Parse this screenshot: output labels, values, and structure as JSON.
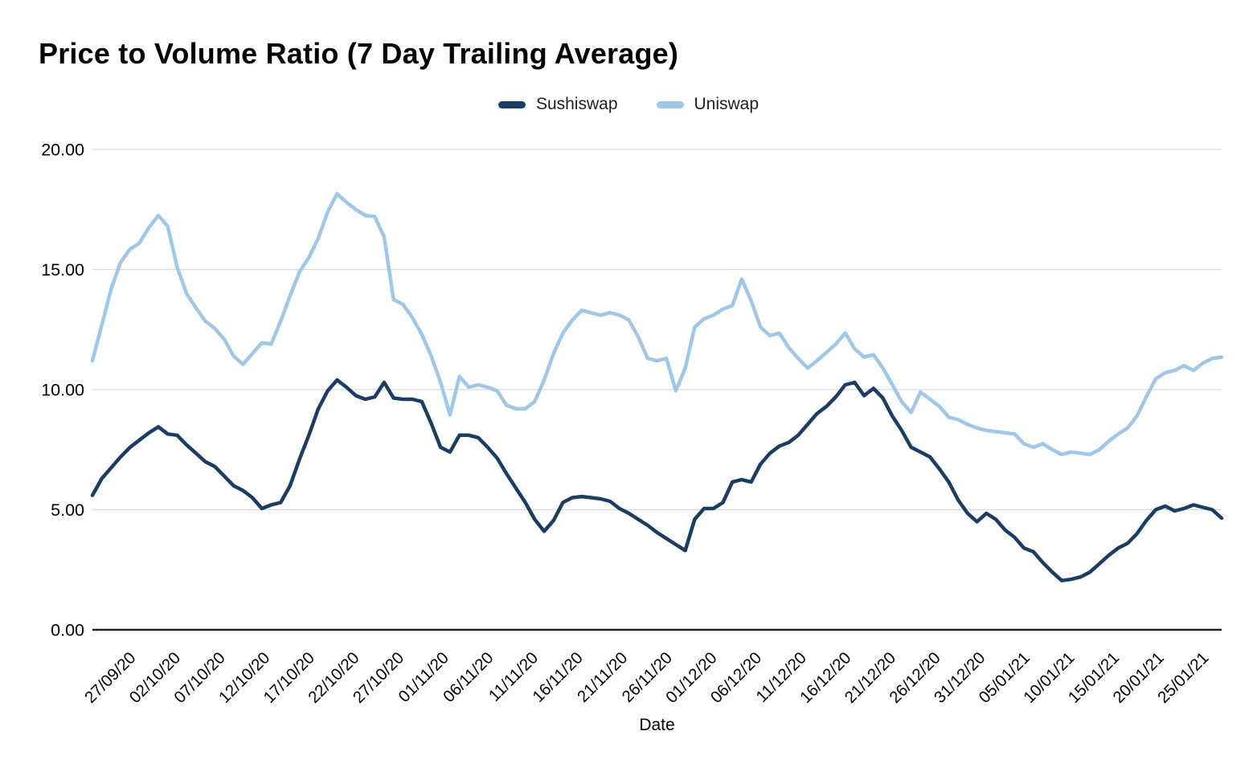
{
  "header": {
    "title": "Price to Volume Ratio (7 Day Trailing Average)"
  },
  "chart_data": {
    "type": "line",
    "title": "Price to Volume Ratio (7 Day Trailing Average)",
    "xlabel": "Date",
    "ylabel": "",
    "ylim": [
      0,
      20
    ],
    "grid": true,
    "legend_position": "top-center",
    "x_tick_step": 5,
    "x_tick_labels": [
      "27/09/20",
      "02/10/20",
      "07/10/20",
      "12/10/20",
      "17/10/20",
      "22/10/20",
      "27/10/20",
      "01/11/20",
      "06/11/20",
      "11/11/20",
      "16/11/20",
      "21/11/20",
      "26/11/20",
      "01/12/20",
      "06/12/20",
      "11/12/20",
      "16/12/20",
      "21/12/20",
      "26/12/20",
      "31/12/20",
      "05/01/21",
      "10/01/21",
      "15/01/21",
      "20/01/21",
      "25/01/21"
    ],
    "y_ticks": [
      {
        "label": "20.00",
        "value": 20
      },
      {
        "label": "15.00",
        "value": 15
      },
      {
        "label": "10.00",
        "value": 10
      },
      {
        "label": "5.00",
        "value": 5
      },
      {
        "label": "0.00",
        "value": 0
      }
    ],
    "colors": {
      "gridline": "#d9d9d9",
      "axis_line": "#212121",
      "tick_text": "#000000",
      "legend_text": "#1f1f1f"
    },
    "series": [
      {
        "name": "Sushiswap",
        "color": "#1B3D63",
        "values": [
          5.6,
          6.3,
          6.75,
          7.2,
          7.6,
          7.9,
          8.2,
          8.45,
          8.15,
          8.1,
          7.7,
          7.35,
          7.0,
          6.8,
          6.4,
          6.0,
          5.8,
          5.5,
          5.05,
          5.2,
          5.3,
          6.0,
          7.1,
          8.1,
          9.2,
          9.95,
          10.4,
          10.1,
          9.75,
          9.6,
          9.7,
          10.3,
          9.65,
          9.6,
          9.6,
          9.5,
          8.6,
          7.6,
          7.4,
          8.1,
          8.1,
          8.0,
          7.6,
          7.15,
          6.5,
          5.9,
          5.3,
          4.6,
          4.1,
          4.55,
          5.3,
          5.5,
          5.55,
          5.5,
          5.45,
          5.35,
          5.05,
          4.85,
          4.6,
          4.35,
          4.05,
          3.8,
          3.55,
          3.3,
          4.6,
          5.05,
          5.05,
          5.3,
          6.15,
          6.25,
          6.15,
          6.9,
          7.35,
          7.65,
          7.8,
          8.1,
          8.55,
          9.0,
          9.3,
          9.7,
          10.2,
          10.3,
          9.75,
          10.05,
          9.65,
          8.9,
          8.3,
          7.6,
          7.4,
          7.2,
          6.7,
          6.15,
          5.4,
          4.85,
          4.5,
          4.85,
          4.6,
          4.15,
          3.85,
          3.4,
          3.25,
          2.8,
          2.4,
          2.05,
          2.1,
          2.2,
          2.4,
          2.75,
          3.1,
          3.4,
          3.6,
          4.0,
          4.55,
          5.0,
          5.15,
          4.95,
          5.05,
          5.2,
          5.1,
          5.0,
          4.65
        ]
      },
      {
        "name": "Uniswap",
        "color": "#A0C6E8",
        "values": [
          11.2,
          12.7,
          14.2,
          15.3,
          15.85,
          16.1,
          16.75,
          17.25,
          16.8,
          15.1,
          14.0,
          13.4,
          12.85,
          12.55,
          12.1,
          11.4,
          11.05,
          11.5,
          11.95,
          11.9,
          12.85,
          13.9,
          14.9,
          15.5,
          16.3,
          17.4,
          18.15,
          17.8,
          17.5,
          17.25,
          17.2,
          16.35,
          13.75,
          13.55,
          13.0,
          12.3,
          11.4,
          10.3,
          8.95,
          10.55,
          10.1,
          10.2,
          10.1,
          9.95,
          9.35,
          9.2,
          9.2,
          9.5,
          10.4,
          11.5,
          12.35,
          12.9,
          13.3,
          13.2,
          13.1,
          13.2,
          13.1,
          12.9,
          12.2,
          11.3,
          11.2,
          11.3,
          9.95,
          10.9,
          12.6,
          12.95,
          13.1,
          13.35,
          13.5,
          14.6,
          13.7,
          12.6,
          12.25,
          12.35,
          11.75,
          11.3,
          10.9,
          11.2,
          11.55,
          11.9,
          12.35,
          11.7,
          11.35,
          11.45,
          10.9,
          10.2,
          9.5,
          9.05,
          9.9,
          9.6,
          9.3,
          8.85,
          8.75,
          8.55,
          8.4,
          8.3,
          8.25,
          8.2,
          8.15,
          7.75,
          7.6,
          7.75,
          7.5,
          7.3,
          7.4,
          7.35,
          7.3,
          7.5,
          7.85,
          8.15,
          8.4,
          8.9,
          9.7,
          10.45,
          10.7,
          10.8,
          11.0,
          10.8,
          11.1,
          11.3,
          11.35
        ]
      }
    ]
  }
}
